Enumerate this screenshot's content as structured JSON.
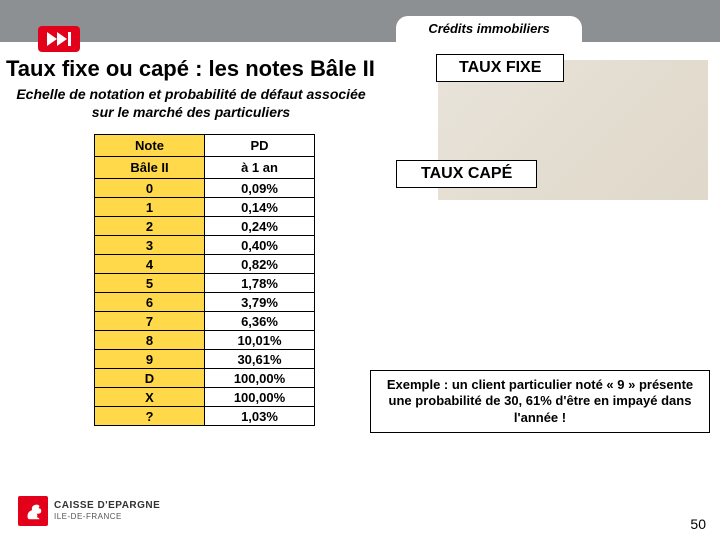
{
  "header": {
    "tab_label": "Crédits immobiliers"
  },
  "title": "Taux fixe ou capé : les notes Bâle II",
  "subtitle": "Echelle de notation et probabilité de défaut associée sur le marché des particuliers",
  "labels": {
    "taux_fixe": "TAUX FIXE",
    "taux_cape": "TAUX CAPÉ"
  },
  "table": {
    "header_left_line1": "Note",
    "header_left_line2": "Bâle II",
    "header_right_line1": "PD",
    "header_right_line2": "à 1 an",
    "rows": [
      {
        "note": "0",
        "pd": "0,09%"
      },
      {
        "note": "1",
        "pd": "0,14%"
      },
      {
        "note": "2",
        "pd": "0,24%"
      },
      {
        "note": "3",
        "pd": "0,40%"
      },
      {
        "note": "4",
        "pd": "0,82%"
      },
      {
        "note": "5",
        "pd": "1,78%"
      },
      {
        "note": "6",
        "pd": "3,79%"
      },
      {
        "note": "7",
        "pd": "6,36%"
      },
      {
        "note": "8",
        "pd": "10,01%"
      },
      {
        "note": "9",
        "pd": "30,61%"
      },
      {
        "note": "D",
        "pd": "100,00%"
      },
      {
        "note": "X",
        "pd": "100,00%"
      },
      {
        "note": "?",
        "pd": "1,03%"
      }
    ],
    "colors": {
      "left_bg": "#ffd94a",
      "right_bg": "#ffffff",
      "border": "#000000"
    }
  },
  "example_note": "Exemple : un client particulier noté « 9 » présente une probabilité de 30, 61% d'être en impayé dans l'année !",
  "footer": {
    "brand": "CAISSE D'EPARGNE",
    "region": "ILE-DE-FRANCE",
    "page": "50"
  },
  "colors": {
    "topbar": "#8c9093",
    "accent_red": "#e2001a",
    "white": "#ffffff"
  }
}
